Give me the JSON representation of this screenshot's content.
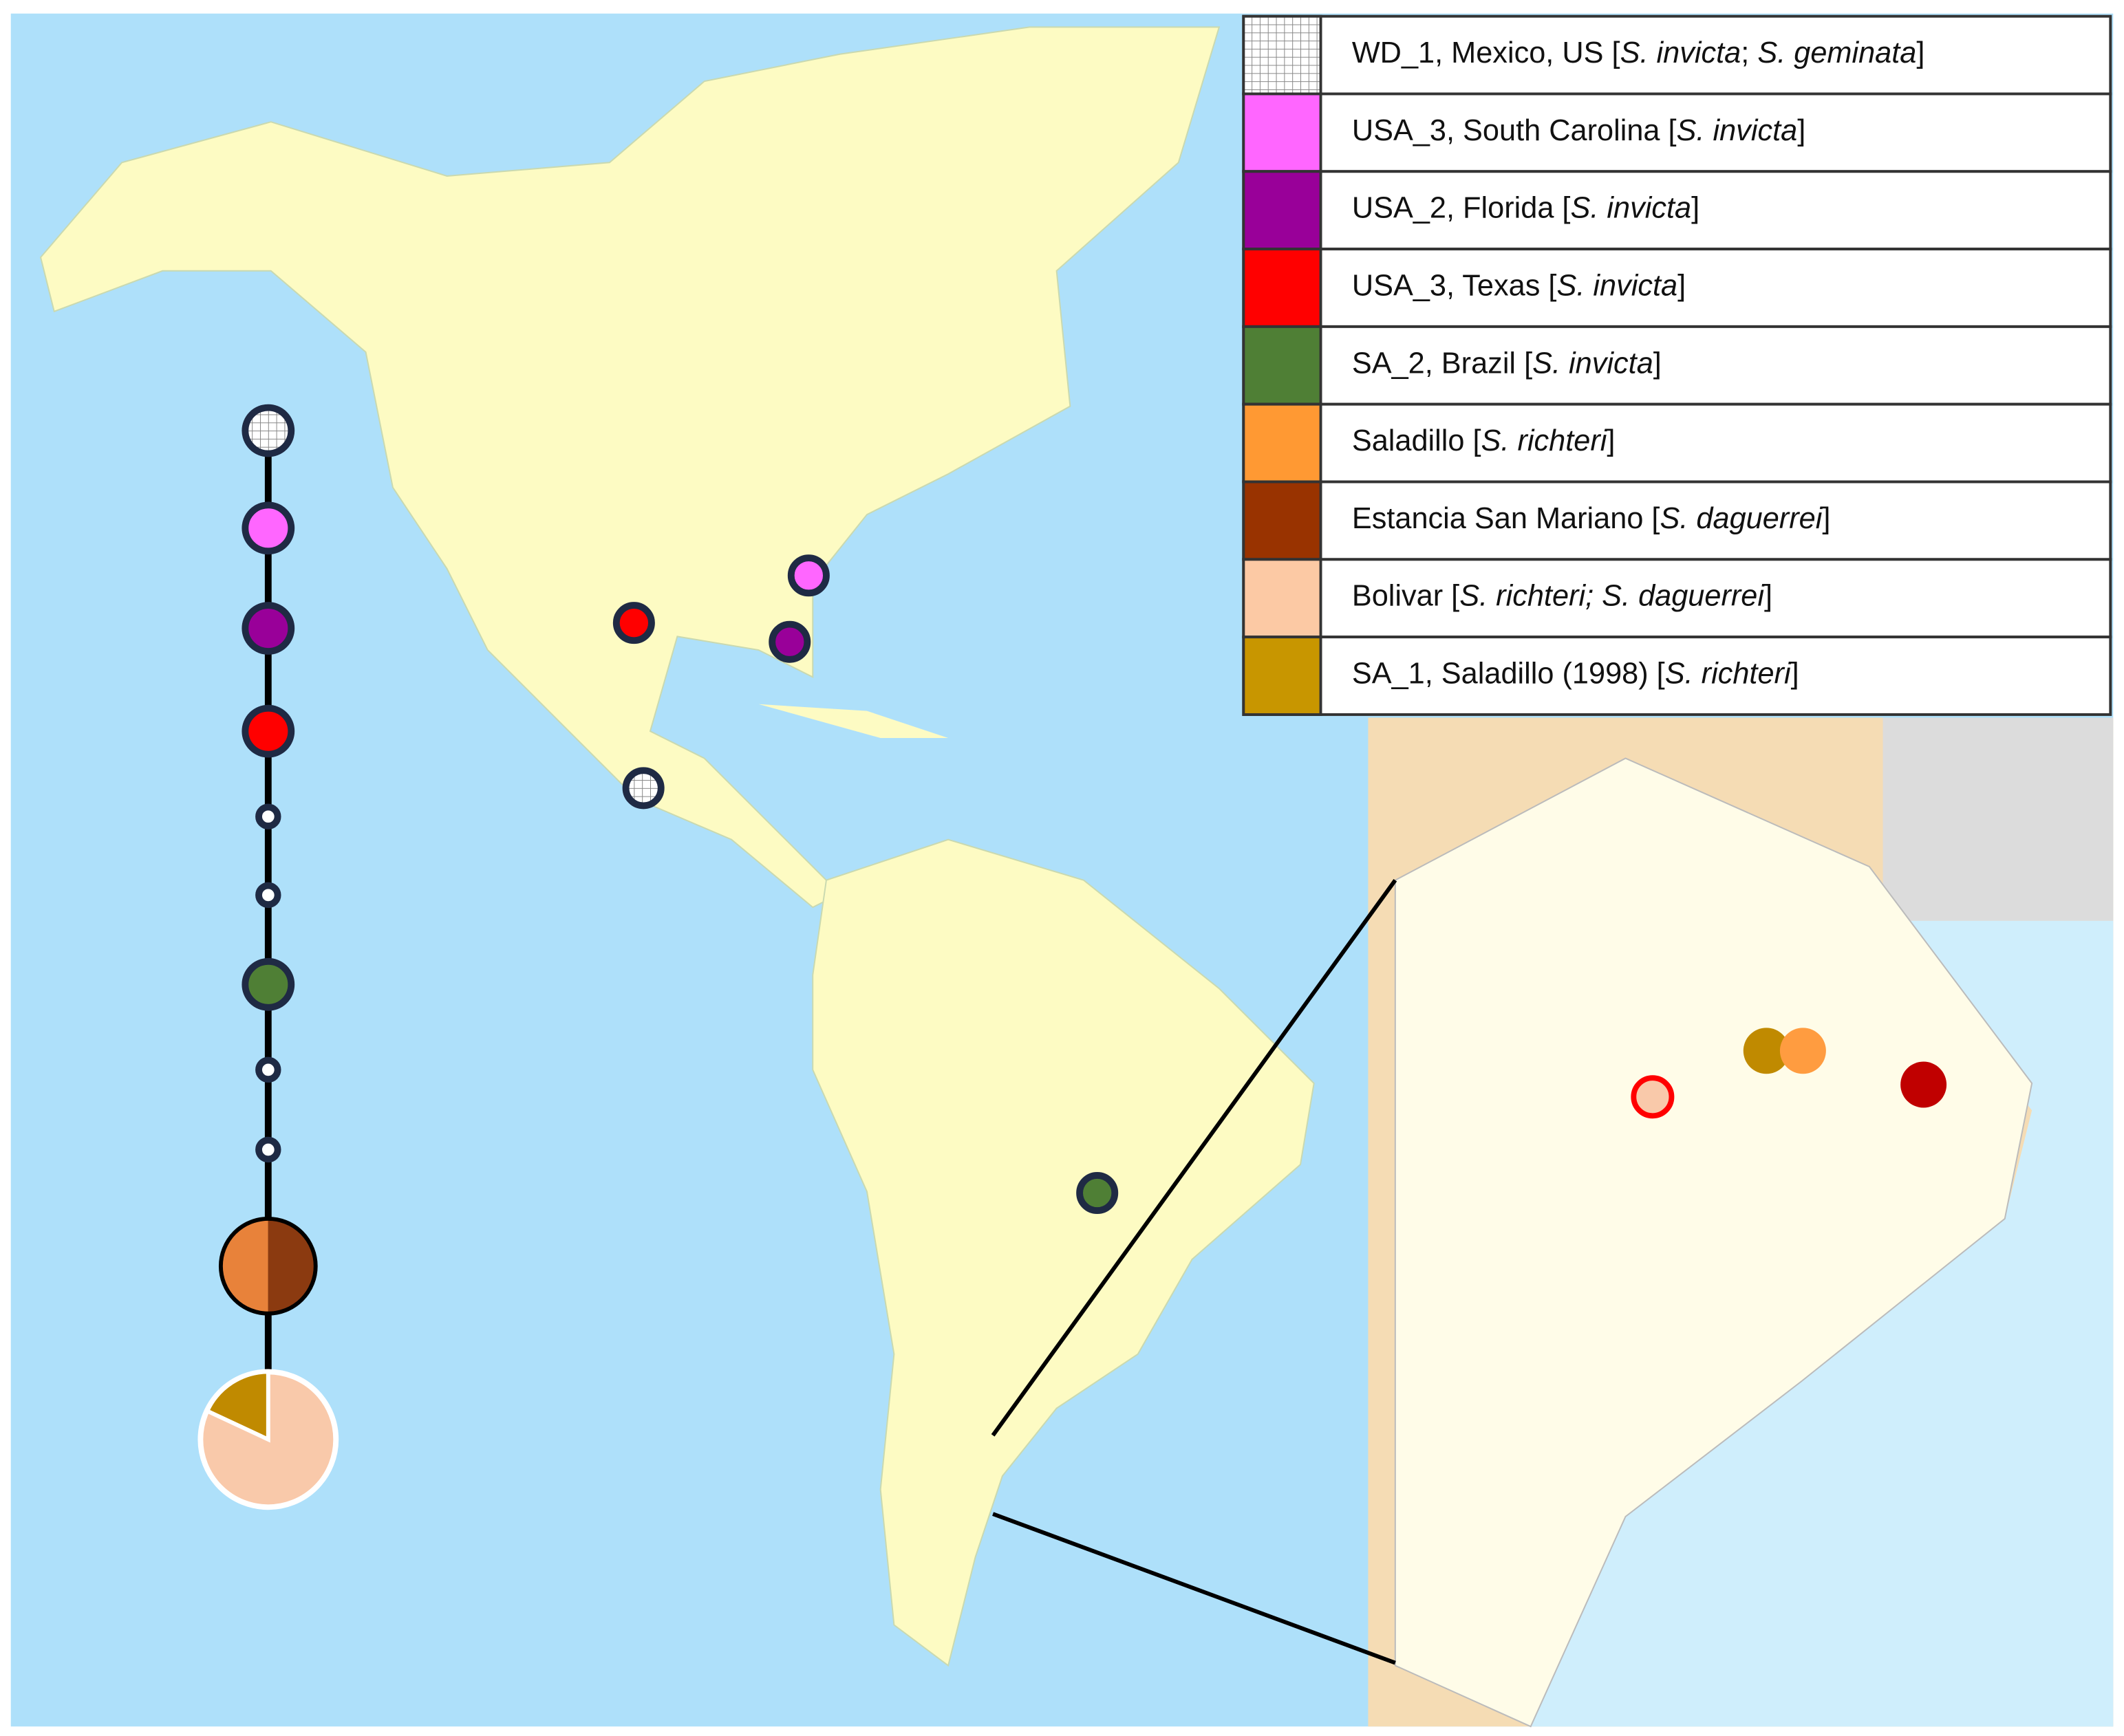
{
  "legend": [
    {
      "pattern": "grid",
      "label": [
        "WD_1, Mexico,  US [",
        "S. invicta",
        "; ",
        "S. geminata",
        "]"
      ]
    },
    {
      "color": "#ff66ff",
      "label": [
        "USA_3, South Carolina [",
        "S. invicta",
        "]"
      ]
    },
    {
      "color": "#990099",
      "label": [
        "USA_2, Florida [",
        "S. invicta",
        "]"
      ]
    },
    {
      "color": "#ff0000",
      "label": [
        "USA_3, Texas [",
        "S. invicta",
        "]"
      ]
    },
    {
      "color": "#4f7f35",
      "label": [
        " SA_2, Brazil [",
        "S. invicta",
        "]"
      ]
    },
    {
      "color": "#ff9933",
      "label": [
        "Saladillo [",
        "S. richteri",
        "]"
      ]
    },
    {
      "color": "#993300",
      "label": [
        "Estancia San Mariano [",
        "S. daguerrei",
        "]"
      ]
    },
    {
      "color": "#fcc9a4",
      "label": [
        "Bolivar [",
        "S. richteri; S. daguerrei",
        "]"
      ]
    },
    {
      "color": "#c89600",
      "label": [
        "SA_1, Saladillo (1998) [",
        "S. richteri",
        "]"
      ]
    }
  ]
}
